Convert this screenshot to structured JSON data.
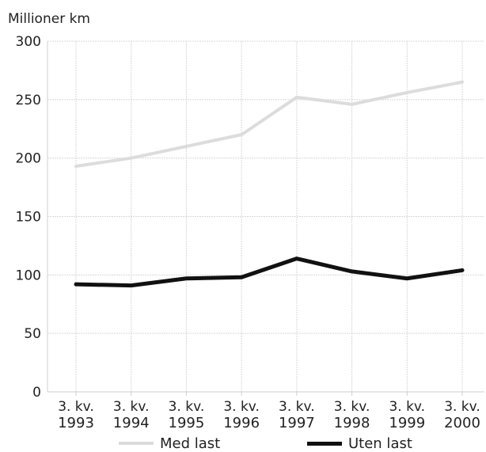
{
  "chart_data": {
    "type": "line",
    "ylabel": "Millioner km",
    "xlabel": "",
    "categories": [
      [
        "3. kv.",
        "1993"
      ],
      [
        "3. kv.",
        "1994"
      ],
      [
        "3. kv.",
        "1995"
      ],
      [
        "3. kv.",
        "1996"
      ],
      [
        "3. kv.",
        "1997"
      ],
      [
        "3. kv.",
        "1998"
      ],
      [
        "3. kv.",
        "1999"
      ],
      [
        "3. kv.",
        "2000"
      ]
    ],
    "ylim": [
      0,
      300
    ],
    "yticks": [
      0,
      50,
      100,
      150,
      200,
      250,
      300
    ],
    "grid": true,
    "legend_position": "bottom",
    "series": [
      {
        "name": "Med last",
        "color": "#dcdcdc",
        "values": [
          193,
          200,
          210,
          220,
          252,
          246,
          256,
          265
        ]
      },
      {
        "name": "Uten last",
        "color": "#111111",
        "values": [
          92,
          91,
          97,
          98,
          114,
          103,
          97,
          104
        ]
      }
    ]
  }
}
